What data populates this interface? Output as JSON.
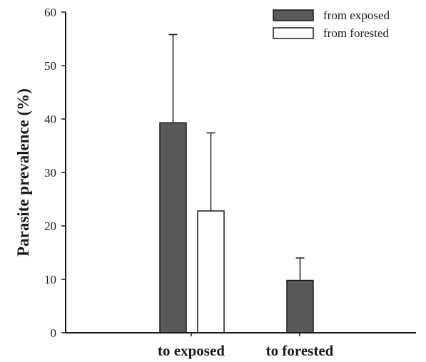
{
  "chart_data": {
    "type": "bar",
    "categories": [
      "to exposed",
      "to forested"
    ],
    "ylabel": "Parasite prevalence (%)",
    "xlabel": "",
    "ylim": [
      0,
      60
    ],
    "yticks": [
      0,
      10,
      20,
      30,
      40,
      50,
      60
    ],
    "ytick_labels": [
      "0",
      "10",
      "20",
      "30",
      "40",
      "50",
      "60"
    ],
    "grid": false,
    "legend_position": "top-right",
    "series": [
      {
        "name": "from exposed",
        "color": "#595959",
        "values": [
          39.3,
          9.8
        ],
        "error_upper": [
          55.8,
          14.0
        ]
      },
      {
        "name": "from forested",
        "color": "#ffffff",
        "values": [
          22.8,
          null
        ],
        "error_upper": [
          37.4,
          null
        ]
      }
    ]
  }
}
